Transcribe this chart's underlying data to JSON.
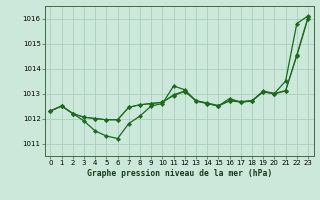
{
  "title": "Graphe pression niveau de la mer (hPa)",
  "bg_color": "#cce8da",
  "grid_color": "#aacfbc",
  "line_color": "#1a6b1a",
  "xlim": [
    -0.5,
    23.5
  ],
  "ylim": [
    1010.5,
    1016.5
  ],
  "yticks": [
    1011,
    1012,
    1013,
    1014,
    1015,
    1016
  ],
  "xticks": [
    0,
    1,
    2,
    3,
    4,
    5,
    6,
    7,
    8,
    9,
    10,
    11,
    12,
    13,
    14,
    15,
    16,
    17,
    18,
    19,
    20,
    21,
    22,
    23
  ],
  "s1": [
    1012.3,
    1012.5,
    1012.2,
    1011.9,
    1011.5,
    1011.3,
    1011.2,
    1011.8,
    1012.1,
    1012.5,
    1012.6,
    1013.3,
    1013.15,
    1012.7,
    1012.6,
    1012.5,
    1012.8,
    1012.65,
    1012.7,
    1013.1,
    1013.0,
    1013.5,
    1015.8,
    1016.1
  ],
  "s2": [
    1012.3,
    1012.5,
    1012.2,
    1012.05,
    1012.0,
    1011.95,
    1011.95,
    1012.45,
    1012.55,
    1012.6,
    1012.65,
    1012.95,
    1013.1,
    1012.72,
    1012.62,
    1012.52,
    1012.72,
    1012.68,
    1012.72,
    1013.08,
    1013.0,
    1013.12,
    1014.55,
    1016.05
  ],
  "s3": [
    1012.3,
    1012.5,
    1012.2,
    1012.05,
    1012.0,
    1011.95,
    1011.95,
    1012.45,
    1012.55,
    1012.6,
    1012.65,
    1012.92,
    1013.08,
    1012.7,
    1012.6,
    1012.5,
    1012.7,
    1012.66,
    1012.7,
    1013.06,
    1012.98,
    1013.1,
    1014.5,
    1016.0
  ],
  "marker": "D",
  "marker_size": 2.2,
  "linewidth1": 0.9,
  "linewidth2": 0.8,
  "tick_fontsize": 5,
  "title_fontsize": 5.8
}
